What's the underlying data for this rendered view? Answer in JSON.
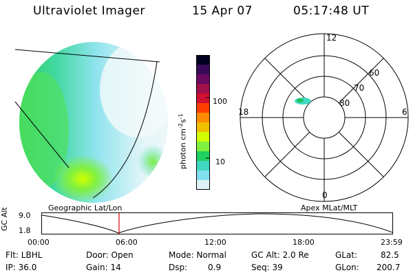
{
  "header": {
    "title": "Ultraviolet Imager",
    "date": "15 Apr 07",
    "time": "05:17:48 UT"
  },
  "colorbar": {
    "unit_main": "photon cm",
    "unit_exp1": "-2",
    "unit_s": "s",
    "unit_exp2": "-1",
    "tick_100": "100",
    "tick_10": "10",
    "colors": [
      "#000020",
      "#3a0a5a",
      "#6a0a60",
      "#a0104a",
      "#d01030",
      "#ff4000",
      "#ff8c00",
      "#f0c000",
      "#d0ff00",
      "#80f040",
      "#20d060",
      "#40d8c0",
      "#80e0f0",
      "#e0f4f8"
    ]
  },
  "polar": {
    "mlt_labels": {
      "top": "12",
      "left": "18",
      "right": "6",
      "bottom": "0"
    },
    "lat_labels": [
      "60",
      "70",
      "80"
    ],
    "aurora_color": "#40d8c0",
    "aurora_core": "#20c060"
  },
  "image_panel": {
    "label": "Geographic Lat/Lon"
  },
  "apex_label": "Apex MLat/MLT",
  "orbit_plot": {
    "ylabel": "GC Alt",
    "y_top": "9.0",
    "y_bottom": "1.8",
    "x_ticks": [
      "00:00",
      "06:00",
      "12:00",
      "18:00",
      "23:59"
    ],
    "current_marker_color": "#dd0000"
  },
  "status": {
    "flt": "Flt: LBHL",
    "ip": "IP: 36.0",
    "door": "Door: Open",
    "gain": "Gain: 14",
    "mode": "Mode: Normal",
    "dsp_label": "Dsp:",
    "dsp_value": "0.9",
    "gc_alt": "GC Alt: 2.0 Re",
    "seq": "Seq: 39",
    "glat_label": "GLat:",
    "glat_value": "82.5",
    "glon_label": "GLon:",
    "glon_value": "200.7"
  }
}
